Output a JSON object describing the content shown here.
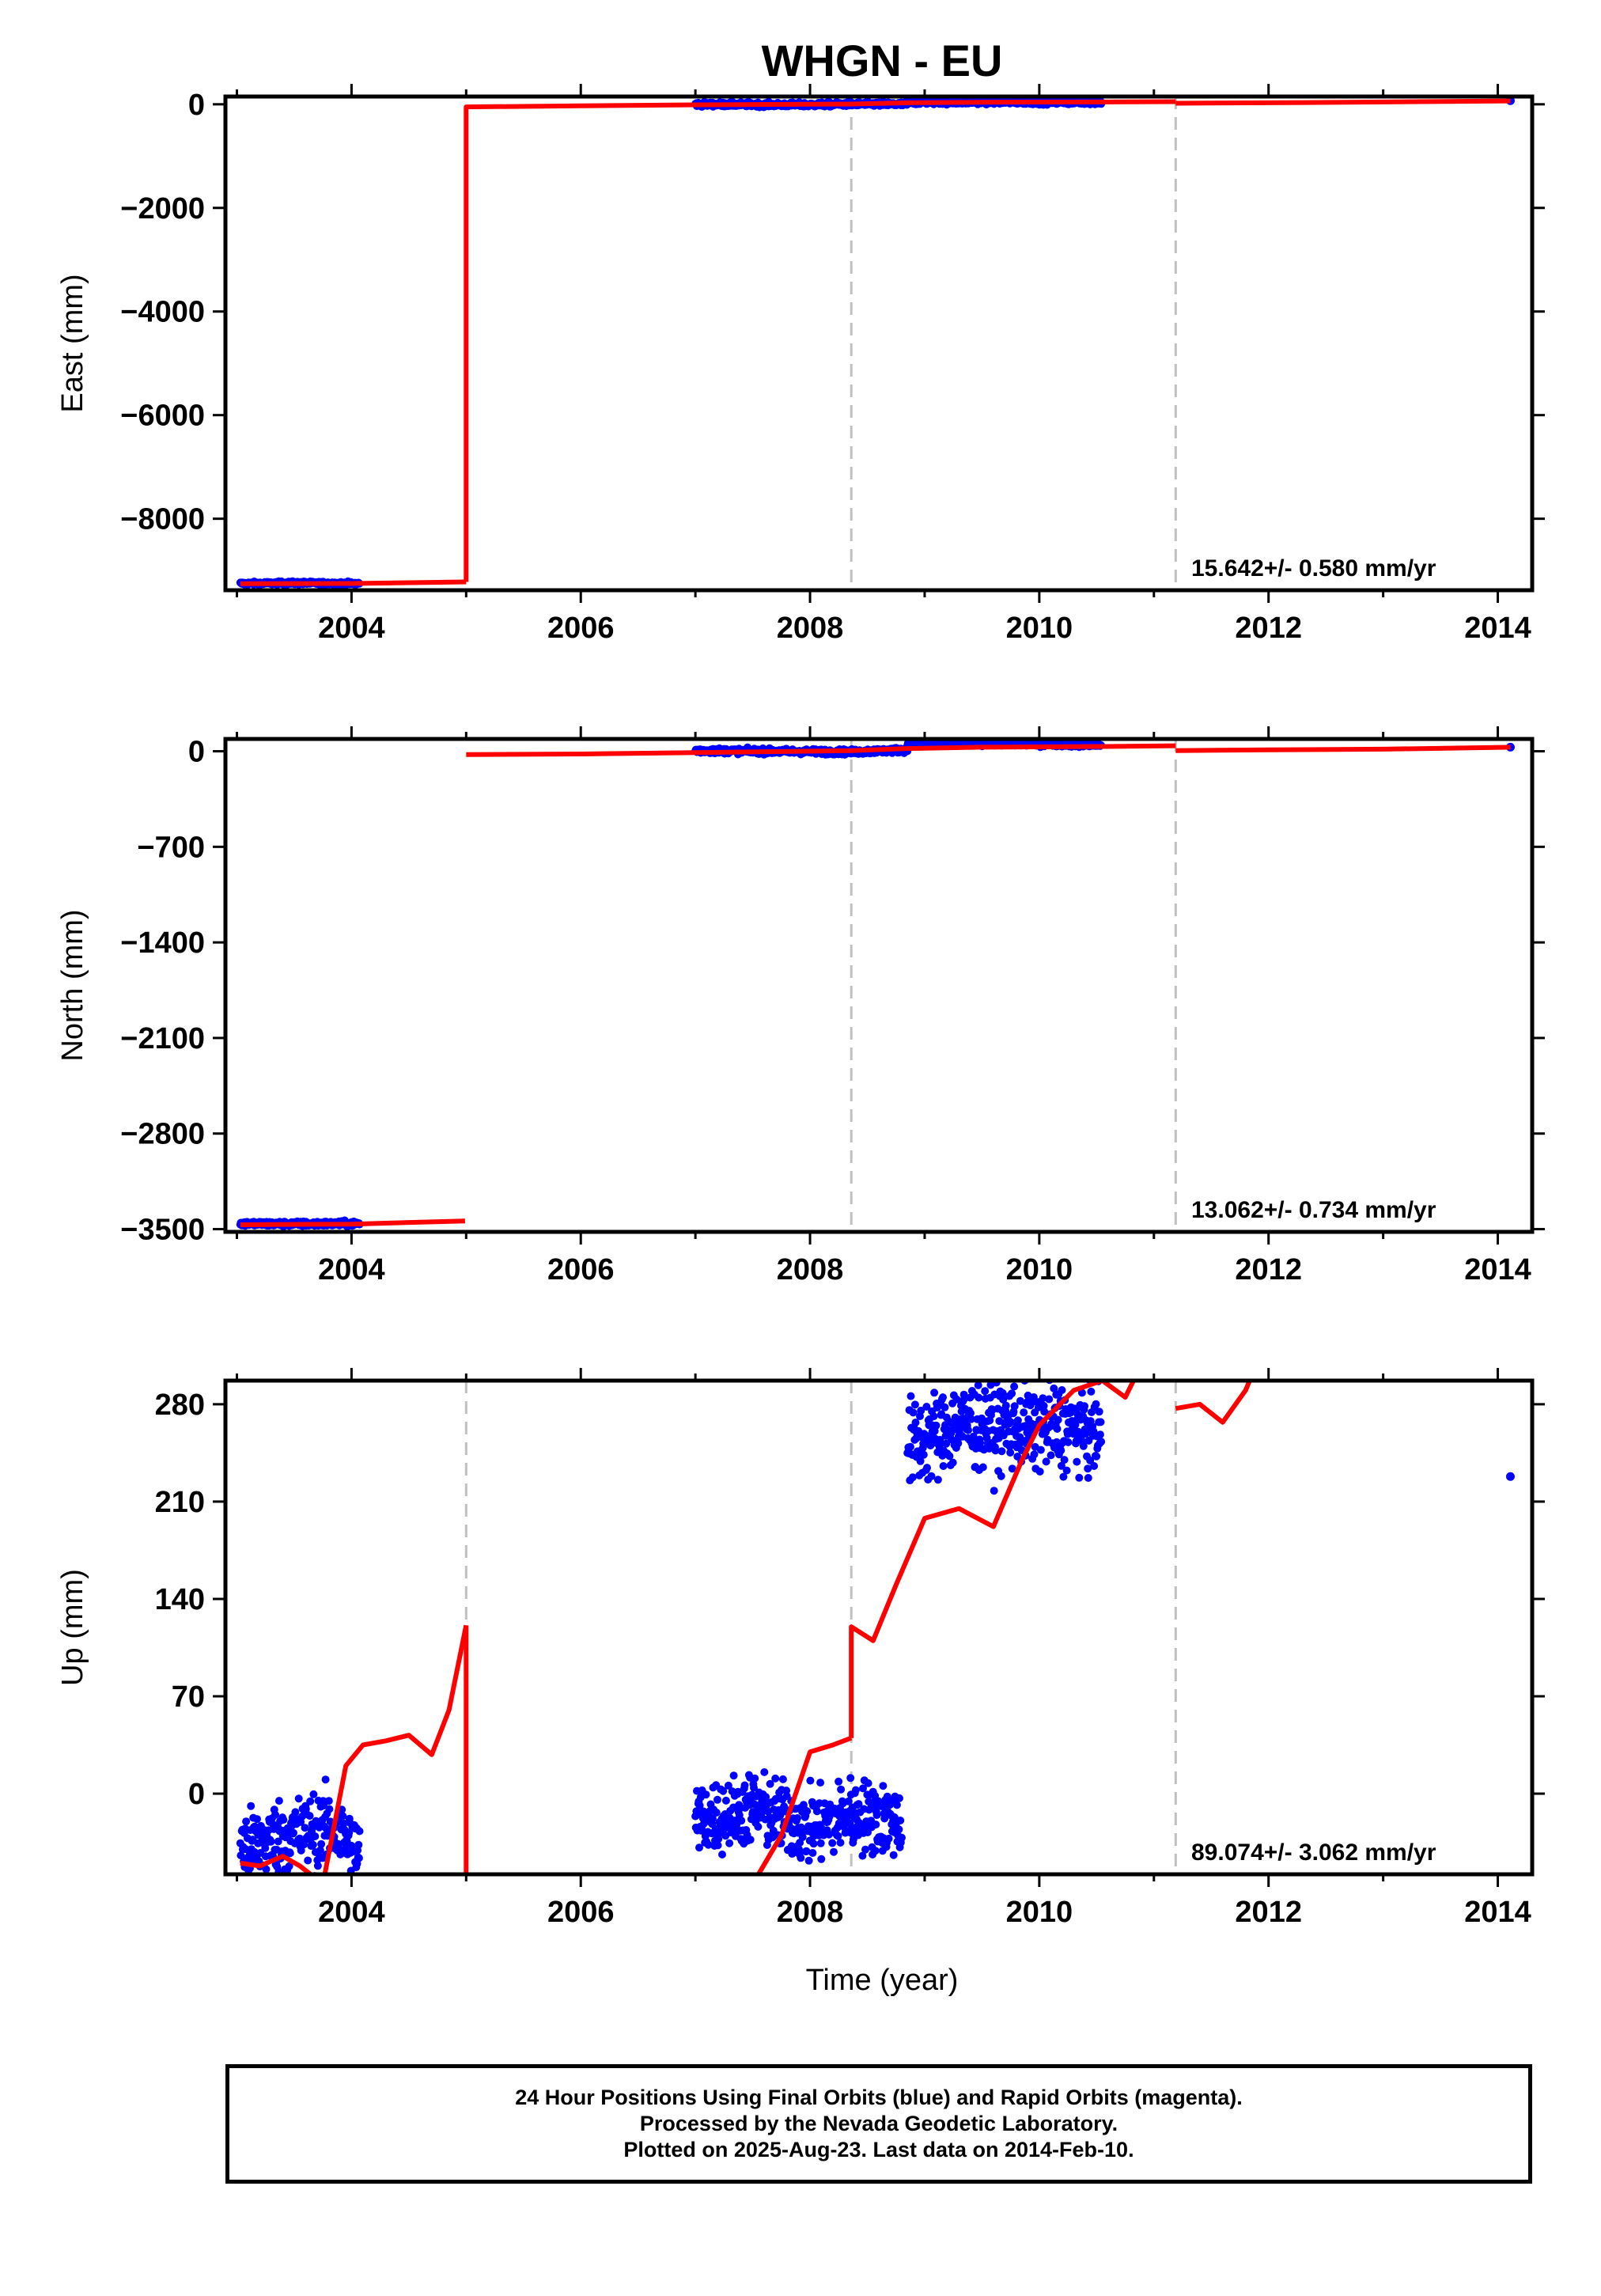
{
  "title": "WHGN - EU",
  "x_axis_label": "Time (year)",
  "caption": [
    "24 Hour Positions Using Final Orbits (blue) and Rapid Orbits (magenta).",
    "Processed by the Nevada Geodetic Laboratory.",
    "Plotted on 2025-Aug-23. Last data on 2014-Feb-10."
  ],
  "colors": {
    "data": "#0000ff",
    "model": "#ff0000",
    "breaks": "#c0c0c0",
    "axes": "#000000"
  },
  "chart_data": [
    {
      "type": "scatter",
      "component": "East",
      "ylabel": "East (mm)",
      "xlim": [
        2002.9,
        2014.3
      ],
      "ylim": [
        -9380,
        150
      ],
      "xticks": [
        2004,
        2006,
        2008,
        2010,
        2012,
        2014
      ],
      "yticks": [
        0,
        -2000,
        -4000,
        -6000,
        -8000
      ],
      "rate_label": "15.642+/- 0.580 mm/yr",
      "breaks": [
        2008.36,
        2011.19
      ],
      "data_segments": [
        {
          "x": [
            2003.03,
            2003.5,
            2004.07
          ],
          "y": [
            -9250,
            -9240,
            -9250
          ],
          "scatter": 30
        },
        {
          "x": [
            2007.0,
            2007.5,
            2008.0,
            2008.36,
            2008.85
          ],
          "y": [
            0,
            -5,
            -10,
            5,
            0
          ],
          "scatter": 40
        },
        {
          "x": [
            2008.85,
            2009.5,
            2010.54
          ],
          "y": [
            40,
            45,
            40
          ],
          "scatter": 40
        }
      ],
      "isolated_points": [
        {
          "x": 2014.11,
          "y": 70
        }
      ],
      "model_segments": [
        {
          "x": [
            2003.03,
            2004.0,
            2005.0
          ],
          "y": [
            -9255,
            -9250,
            -9220
          ]
        },
        {
          "x": [
            2005.0,
            2005.0,
            2006.0,
            2007.0,
            2008.36,
            2008.85,
            2009.5,
            2010.54,
            2011.19
          ],
          "y": [
            -9220,
            -50,
            -30,
            -10,
            5,
            30,
            40,
            45,
            50
          ]
        },
        {
          "x": [
            2011.19,
            2012.0,
            2013.0,
            2014.11
          ],
          "y": [
            20,
            30,
            45,
            65
          ]
        }
      ]
    },
    {
      "type": "scatter",
      "component": "North",
      "ylabel": "North (mm)",
      "xlim": [
        2002.9,
        2014.3
      ],
      "ylim": [
        -3520,
        90
      ],
      "xticks": [
        2004,
        2006,
        2008,
        2010,
        2012,
        2014
      ],
      "yticks": [
        0,
        -700,
        -1400,
        -2100,
        -2800,
        -3500
      ],
      "rate_label": "13.062+/- 0.734 mm/yr",
      "breaks": [
        2008.36,
        2011.19
      ],
      "data_segments": [
        {
          "x": [
            2003.03,
            2003.5,
            2004.07
          ],
          "y": [
            -3460,
            -3462,
            -3460
          ],
          "scatter": 18
        },
        {
          "x": [
            2007.0,
            2007.6,
            2008.36,
            2008.85
          ],
          "y": [
            5,
            0,
            -5,
            10
          ],
          "scatter": 18
        },
        {
          "x": [
            2008.85,
            2009.5,
            2010.54
          ],
          "y": [
            50,
            55,
            45
          ],
          "scatter": 14
        }
      ],
      "isolated_points": [
        {
          "x": 2014.11,
          "y": 30
        }
      ],
      "model_segments": [
        {
          "x": [
            2003.03,
            2004.0,
            2004.99
          ],
          "y": [
            -3468,
            -3463,
            -3440
          ]
        },
        {
          "x": [
            2005.0,
            2006.0,
            2007.0,
            2008.36,
            2008.85,
            2009.5,
            2010.54,
            2011.19
          ],
          "y": [
            -25,
            -20,
            -10,
            5,
            20,
            30,
            35,
            40
          ]
        },
        {
          "x": [
            2011.19,
            2012.0,
            2013.0,
            2014.11
          ],
          "y": [
            5,
            10,
            15,
            30
          ]
        }
      ]
    },
    {
      "type": "scatter",
      "component": "Up",
      "ylabel": "Up (mm)",
      "xlim": [
        2002.9,
        2014.3
      ],
      "ylim": [
        -58,
        297
      ],
      "xticks": [
        2004,
        2006,
        2008,
        2010,
        2012,
        2014
      ],
      "yticks": [
        0,
        70,
        140,
        210,
        280
      ],
      "rate_label": "89.074+/- 3.062 mm/yr",
      "breaks": [
        2005.0,
        2008.36,
        2011.19
      ],
      "data_segments": [
        {
          "x": [
            2003.03,
            2003.4,
            2003.8,
            2004.07
          ],
          "y": [
            -40,
            -30,
            -25,
            -40
          ],
          "scatter": 25
        },
        {
          "x": [
            2007.0,
            2007.5,
            2008.0,
            2008.36,
            2008.8
          ],
          "y": [
            -20,
            -10,
            -25,
            -15,
            -20
          ],
          "scatter": 25
        },
        {
          "x": [
            2008.85,
            2009.3,
            2009.8,
            2010.54
          ],
          "y": [
            250,
            265,
            265,
            262
          ],
          "scatter": 30
        }
      ],
      "isolated_points": [
        {
          "x": 2014.11,
          "y": 228
        }
      ],
      "model_segments": [
        {
          "x": [
            2003.03,
            2003.2,
            2003.4,
            2003.55,
            2003.75,
            2003.95,
            2004.1,
            2004.3,
            2004.5,
            2004.7,
            2004.85,
            2005.0
          ],
          "y": [
            -50,
            -52,
            -45,
            -52,
            -65,
            20,
            35,
            38,
            42,
            28,
            60,
            121
          ]
        },
        {
          "x": [
            2005.0,
            2005.0
          ],
          "y": [
            121,
            -70
          ]
        },
        {
          "x": [
            2007.0,
            2007.3,
            2007.5,
            2007.75,
            2008.0,
            2008.2,
            2008.36
          ],
          "y": [
            -70,
            -60,
            -65,
            -30,
            30,
            35,
            40
          ]
        },
        {
          "x": [
            2008.36,
            2008.36,
            2008.55,
            2008.75,
            2009.0,
            2009.3,
            2009.6,
            2009.85,
            2010.0,
            2010.3,
            2010.55,
            2010.75,
            2010.9
          ],
          "y": [
            40,
            120,
            110,
            150,
            198,
            205,
            192,
            240,
            265,
            290,
            297,
            285,
            310
          ]
        },
        {
          "x": [
            2011.19,
            2011.4,
            2011.6,
            2011.8,
            2011.95
          ],
          "y": [
            277,
            280,
            267,
            290,
            320
          ]
        }
      ]
    }
  ]
}
